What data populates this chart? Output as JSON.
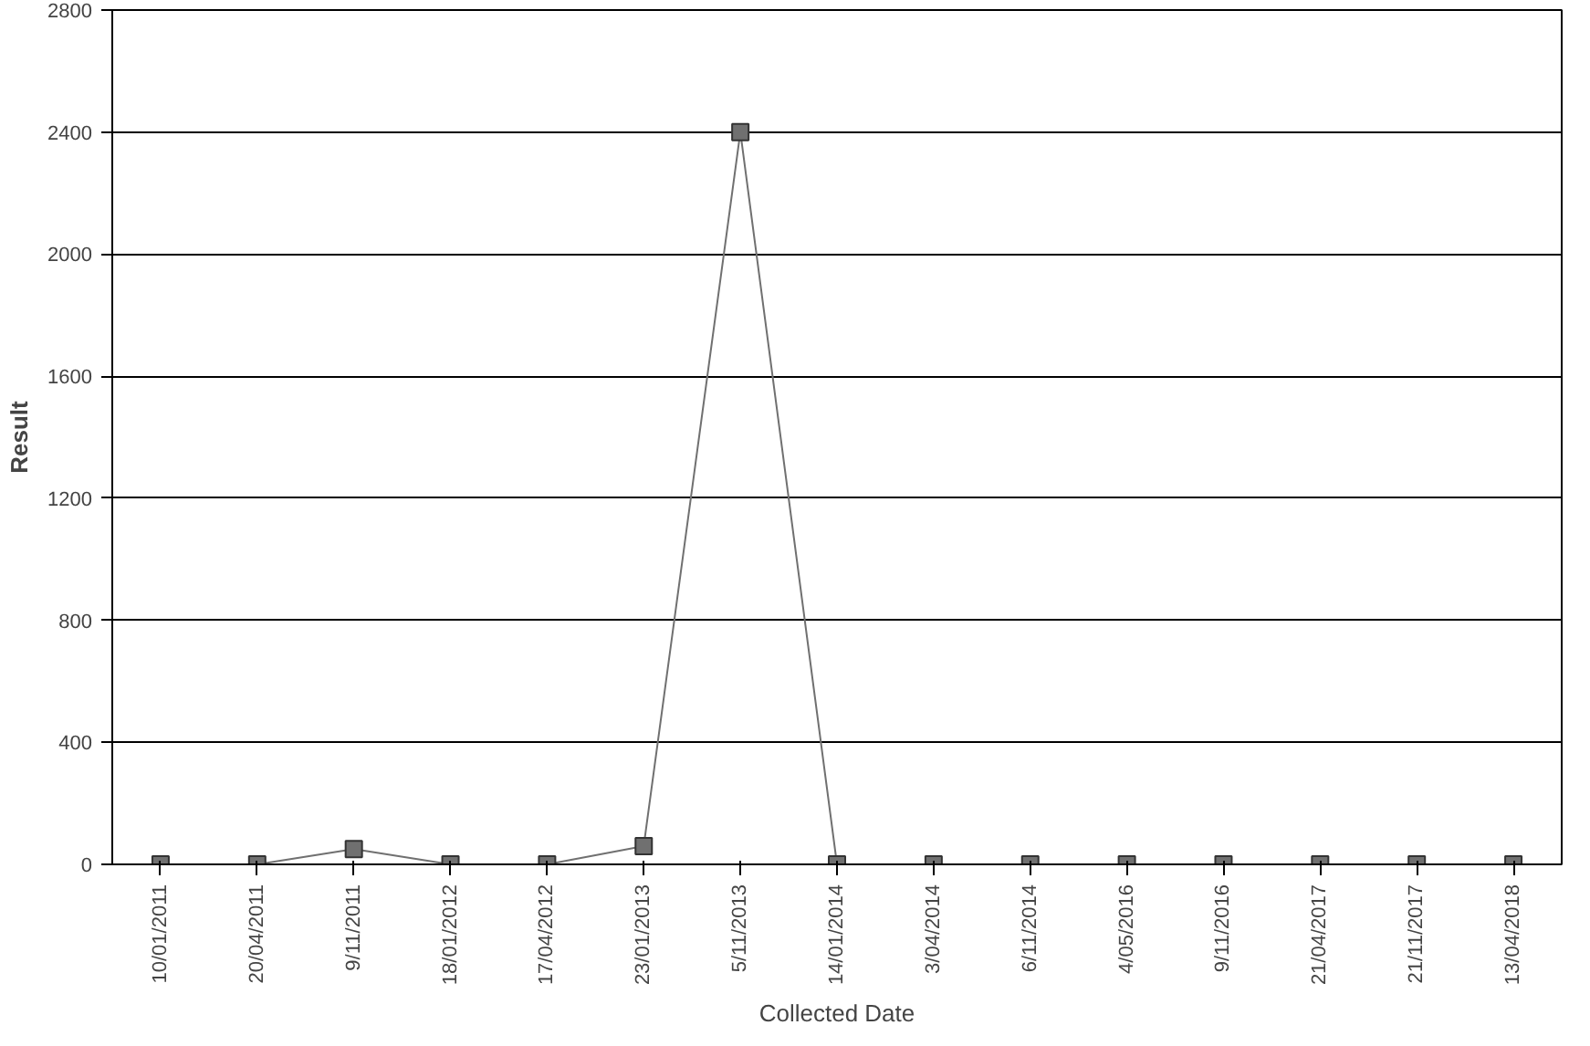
{
  "chart_data": {
    "type": "line",
    "xlabel": "Collected Date",
    "ylabel": "Result",
    "categories": [
      "10/01/2011",
      "20/04/2011",
      "9/11/2011",
      "18/01/2012",
      "17/04/2012",
      "23/01/2013",
      "5/11/2013",
      "14/01/2014",
      "3/04/2014",
      "6/11/2014",
      "4/05/2016",
      "9/11/2016",
      "21/04/2017",
      "21/11/2017",
      "13/04/2018"
    ],
    "series": [
      {
        "color": "#707070",
        "values": [
          0,
          0,
          50,
          0,
          0,
          60,
          2400,
          0,
          0,
          0,
          0,
          0,
          0,
          0,
          0
        ]
      }
    ],
    "ylim": [
      0,
      2800
    ],
    "yticks": [
      0,
      400,
      800,
      1200,
      1600,
      2000,
      2400,
      2800
    ],
    "grid": "y",
    "marker": "square",
    "line_style": "solid"
  }
}
